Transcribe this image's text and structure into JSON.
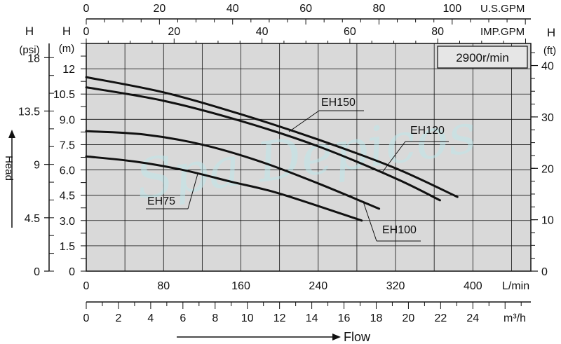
{
  "chart_data": {
    "type": "line",
    "speed_label": "2900r/min",
    "watermark": "Spa Depicos",
    "x_axes": {
      "flow_lmin": {
        "unit": "L/min",
        "range": [
          0,
          460
        ],
        "ticks": [
          "0",
          "80",
          "160",
          "240",
          "320",
          "400"
        ],
        "tick_values": [
          0,
          80,
          160,
          240,
          320,
          400
        ]
      },
      "flow_m3h": {
        "unit": "m³/h",
        "range": [
          0,
          27.6
        ],
        "ticks": [
          "0",
          "2",
          "4",
          "6",
          "8",
          "10",
          "12",
          "14",
          "16",
          "18",
          "20",
          "22",
          "24"
        ],
        "tick_values": [
          0,
          2,
          4,
          6,
          8,
          10,
          12,
          14,
          16,
          18,
          20,
          22,
          24
        ]
      },
      "us_gpm": {
        "unit": "U.S.GPM",
        "range": [
          0,
          121.5
        ],
        "ticks": [
          "0",
          "20",
          "40",
          "60",
          "80",
          "100"
        ],
        "tick_values": [
          0,
          20,
          40,
          60,
          80,
          100
        ]
      },
      "imp_gpm": {
        "unit": "IMP.GPM",
        "range": [
          0,
          101.2
        ],
        "ticks": [
          "0",
          "20",
          "40",
          "60",
          "80"
        ],
        "tick_values": [
          0,
          20,
          40,
          60,
          80
        ]
      }
    },
    "y_axes": {
      "head_m": {
        "title": "H",
        "unit": "(m)",
        "range": [
          0,
          13.5
        ],
        "ticks": [
          "0",
          "1.5",
          "3.0",
          "4.5",
          "6.0",
          "7.5",
          "9.0",
          "10.5",
          "12"
        ],
        "tick_values": [
          0,
          1.5,
          3.0,
          4.5,
          6.0,
          7.5,
          9.0,
          10.5,
          12
        ]
      },
      "head_psi": {
        "title": "H",
        "unit": "(psi)",
        "range": [
          0,
          19.2
        ],
        "ticks": [
          "0",
          "4.5",
          "9",
          "13.5",
          "18"
        ],
        "tick_values": [
          0,
          4.5,
          9,
          13.5,
          18
        ]
      },
      "head_ft": {
        "title": "H",
        "unit": "(ft)",
        "range": [
          0,
          44.3
        ],
        "ticks": [
          "0",
          "10",
          "20",
          "30",
          "40"
        ],
        "tick_values": [
          0,
          10,
          20,
          30,
          40
        ]
      }
    },
    "left_axis_title": "Head",
    "bottom_axis_title": "Flow",
    "grid": true,
    "series": [
      {
        "name": "EH150",
        "x": [
          0,
          80,
          160,
          240,
          320,
          384
        ],
        "y": [
          11.5,
          10.6,
          9.3,
          7.8,
          6.1,
          4.4
        ]
      },
      {
        "name": "EH120",
        "x": [
          0,
          80,
          160,
          240,
          320,
          366
        ],
        "y": [
          10.9,
          10.1,
          8.9,
          7.4,
          5.5,
          4.2
        ]
      },
      {
        "name": "EH100",
        "x": [
          0,
          60,
          120,
          180,
          240,
          303
        ],
        "y": [
          8.3,
          8.1,
          7.5,
          6.5,
          5.2,
          3.7
        ]
      },
      {
        "name": "EH75",
        "x": [
          0,
          50,
          100,
          150,
          200,
          285
        ],
        "y": [
          6.8,
          6.5,
          6.0,
          5.3,
          4.6,
          3.0
        ]
      }
    ],
    "annotations": [
      {
        "text": "EH150",
        "series": "EH150"
      },
      {
        "text": "EH120",
        "series": "EH120"
      },
      {
        "text": "EH100",
        "series": "EH100"
      },
      {
        "text": "EH75",
        "series": "EH75"
      }
    ]
  }
}
